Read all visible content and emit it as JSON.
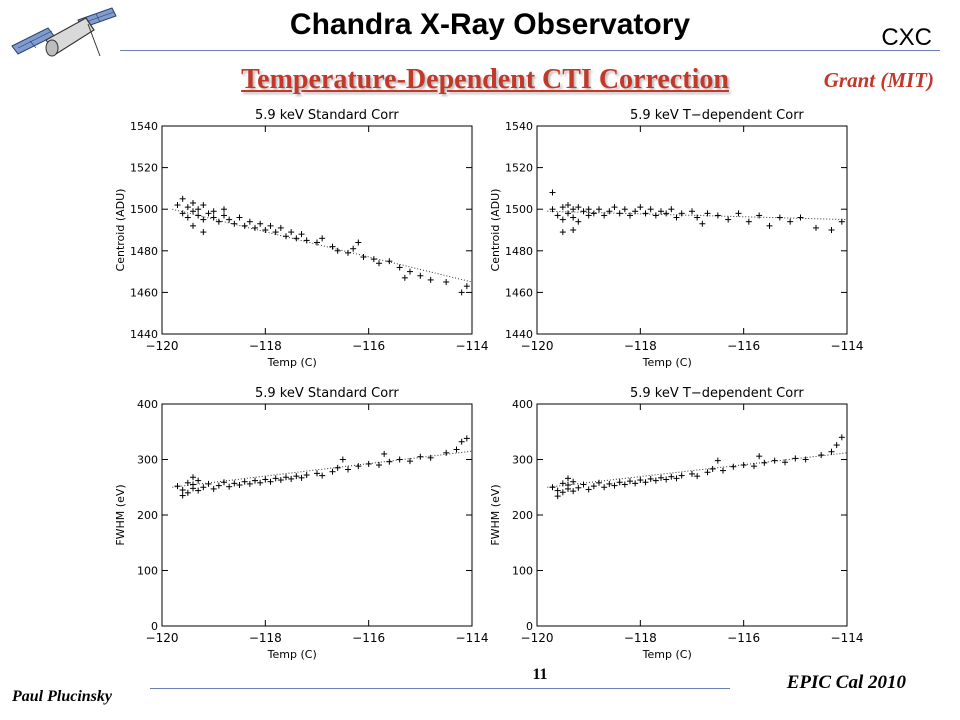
{
  "header": {
    "title": "Chandra X-Ray Observatory",
    "org": "CXC",
    "subtitle": "Temperature-Dependent CTI Correction",
    "credit": "Grant (MIT)"
  },
  "footer": {
    "author": "Paul Plucinsky",
    "page": "11",
    "event": "EPIC Cal 2010"
  },
  "chart_data": [
    {
      "type": "scatter",
      "title": "5.9 keV Standard Corr",
      "xlabel": "Temp (C)",
      "ylabel": "Centroid (ADU)",
      "xlim": [
        -120,
        -114
      ],
      "ylim": [
        1440,
        1540
      ],
      "xticks": [
        -120,
        -118,
        -116,
        -114
      ],
      "yticks": [
        1440,
        1460,
        1480,
        1500,
        1520,
        1540
      ],
      "fit": [
        [
          -119.8,
          1500
        ],
        [
          -114,
          1465
        ]
      ],
      "points": [
        [
          -119.7,
          1502
        ],
        [
          -119.6,
          1498
        ],
        [
          -119.5,
          1501
        ],
        [
          -119.5,
          1496
        ],
        [
          -119.4,
          1503
        ],
        [
          -119.4,
          1499
        ],
        [
          -119.3,
          1497
        ],
        [
          -119.3,
          1500
        ],
        [
          -119.2,
          1495
        ],
        [
          -119.2,
          1502
        ],
        [
          -119.1,
          1498
        ],
        [
          -119.0,
          1496
        ],
        [
          -119.0,
          1499
        ],
        [
          -118.9,
          1494
        ],
        [
          -118.8,
          1497
        ],
        [
          -118.7,
          1495
        ],
        [
          -118.6,
          1493
        ],
        [
          -118.5,
          1496
        ],
        [
          -118.4,
          1492
        ],
        [
          -118.3,
          1494
        ],
        [
          -118.2,
          1491
        ],
        [
          -118.1,
          1493
        ],
        [
          -118.0,
          1490
        ],
        [
          -117.9,
          1492
        ],
        [
          -117.8,
          1489
        ],
        [
          -117.7,
          1491
        ],
        [
          -117.6,
          1487
        ],
        [
          -117.5,
          1489
        ],
        [
          -117.4,
          1486
        ],
        [
          -117.3,
          1488
        ],
        [
          -117.2,
          1485
        ],
        [
          -117.0,
          1484
        ],
        [
          -116.9,
          1486
        ],
        [
          -116.7,
          1482
        ],
        [
          -116.6,
          1480
        ],
        [
          -116.4,
          1479
        ],
        [
          -116.3,
          1481
        ],
        [
          -116.1,
          1477
        ],
        [
          -115.9,
          1476
        ],
        [
          -115.8,
          1474
        ],
        [
          -115.6,
          1475
        ],
        [
          -115.4,
          1472
        ],
        [
          -115.2,
          1470
        ],
        [
          -115.0,
          1468
        ],
        [
          -114.8,
          1466
        ],
        [
          -114.5,
          1465
        ],
        [
          -114.2,
          1460
        ],
        [
          -114.1,
          1463
        ],
        [
          -119.6,
          1505
        ],
        [
          -119.4,
          1492
        ],
        [
          -119.2,
          1489
        ],
        [
          -118.8,
          1500
        ],
        [
          -116.2,
          1484
        ],
        [
          -115.3,
          1467
        ]
      ]
    },
    {
      "type": "scatter",
      "title": "5.9 keV T−dependent Corr",
      "xlabel": "Temp (C)",
      "ylabel": "Centroid (ADU)",
      "xlim": [
        -120,
        -114
      ],
      "ylim": [
        1440,
        1540
      ],
      "xticks": [
        -120,
        -118,
        -116,
        -114
      ],
      "yticks": [
        1440,
        1460,
        1480,
        1500,
        1520,
        1540
      ],
      "fit": [
        [
          -119.8,
          1499
        ],
        [
          -114,
          1495
        ]
      ],
      "points": [
        [
          -119.7,
          1500
        ],
        [
          -119.6,
          1497
        ],
        [
          -119.5,
          1501
        ],
        [
          -119.5,
          1495
        ],
        [
          -119.4,
          1502
        ],
        [
          -119.4,
          1498
        ],
        [
          -119.3,
          1496
        ],
        [
          -119.3,
          1500
        ],
        [
          -119.2,
          1494
        ],
        [
          -119.2,
          1501
        ],
        [
          -119.1,
          1499
        ],
        [
          -119.0,
          1497
        ],
        [
          -119.0,
          1500
        ],
        [
          -118.9,
          1498
        ],
        [
          -118.8,
          1500
        ],
        [
          -118.7,
          1497
        ],
        [
          -118.6,
          1499
        ],
        [
          -118.5,
          1501
        ],
        [
          -118.4,
          1498
        ],
        [
          -118.3,
          1500
        ],
        [
          -118.2,
          1497
        ],
        [
          -118.1,
          1499
        ],
        [
          -118.0,
          1501
        ],
        [
          -117.9,
          1498
        ],
        [
          -117.8,
          1500
        ],
        [
          -117.7,
          1497
        ],
        [
          -117.6,
          1499
        ],
        [
          -117.5,
          1498
        ],
        [
          -117.4,
          1500
        ],
        [
          -117.3,
          1496
        ],
        [
          -117.2,
          1498
        ],
        [
          -117.0,
          1499
        ],
        [
          -116.9,
          1496
        ],
        [
          -116.7,
          1498
        ],
        [
          -116.5,
          1497
        ],
        [
          -116.3,
          1495
        ],
        [
          -116.1,
          1498
        ],
        [
          -115.9,
          1494
        ],
        [
          -115.7,
          1497
        ],
        [
          -115.5,
          1492
        ],
        [
          -115.3,
          1496
        ],
        [
          -115.1,
          1494
        ],
        [
          -114.9,
          1496
        ],
        [
          -114.6,
          1491
        ],
        [
          -114.3,
          1490
        ],
        [
          -114.1,
          1494
        ],
        [
          -119.7,
          1508
        ],
        [
          -119.5,
          1489
        ],
        [
          -119.3,
          1490
        ],
        [
          -116.8,
          1493
        ]
      ]
    },
    {
      "type": "scatter",
      "title": "5.9 keV Standard Corr",
      "xlabel": "Temp (C)",
      "ylabel": "FWHM (eV)",
      "xlim": [
        -120,
        -114
      ],
      "ylim": [
        0,
        400
      ],
      "xticks": [
        -120,
        -118,
        -116,
        -114
      ],
      "yticks": [
        0,
        100,
        200,
        300,
        400
      ],
      "fit": [
        [
          -119.8,
          250
        ],
        [
          -114,
          315
        ]
      ],
      "points": [
        [
          -119.7,
          252
        ],
        [
          -119.6,
          245
        ],
        [
          -119.5,
          258
        ],
        [
          -119.5,
          240
        ],
        [
          -119.4,
          255
        ],
        [
          -119.4,
          248
        ],
        [
          -119.3,
          262
        ],
        [
          -119.3,
          244
        ],
        [
          -119.2,
          250
        ],
        [
          -119.1,
          256
        ],
        [
          -119.0,
          247
        ],
        [
          -118.9,
          253
        ],
        [
          -118.8,
          259
        ],
        [
          -118.7,
          251
        ],
        [
          -118.6,
          257
        ],
        [
          -118.5,
          254
        ],
        [
          -118.4,
          260
        ],
        [
          -118.3,
          256
        ],
        [
          -118.2,
          262
        ],
        [
          -118.1,
          258
        ],
        [
          -118.0,
          264
        ],
        [
          -117.9,
          260
        ],
        [
          -117.8,
          266
        ],
        [
          -117.7,
          263
        ],
        [
          -117.6,
          268
        ],
        [
          -117.5,
          265
        ],
        [
          -117.4,
          270
        ],
        [
          -117.3,
          267
        ],
        [
          -117.2,
          272
        ],
        [
          -117.0,
          275
        ],
        [
          -116.9,
          271
        ],
        [
          -116.7,
          278
        ],
        [
          -116.6,
          285
        ],
        [
          -116.4,
          282
        ],
        [
          -116.2,
          288
        ],
        [
          -116.0,
          292
        ],
        [
          -115.8,
          290
        ],
        [
          -115.6,
          296
        ],
        [
          -115.4,
          300
        ],
        [
          -115.2,
          297
        ],
        [
          -115.0,
          305
        ],
        [
          -114.8,
          303
        ],
        [
          -114.5,
          312
        ],
        [
          -114.3,
          318
        ],
        [
          -114.2,
          332
        ],
        [
          -114.1,
          338
        ],
        [
          -119.6,
          235
        ],
        [
          -119.4,
          268
        ],
        [
          -116.5,
          300
        ],
        [
          -115.7,
          310
        ]
      ]
    },
    {
      "type": "scatter",
      "title": "5.9 keV T−dependent Corr",
      "xlabel": "Temp (C)",
      "ylabel": "FWHM (eV)",
      "xlim": [
        -120,
        -114
      ],
      "ylim": [
        0,
        400
      ],
      "xticks": [
        -120,
        -118,
        -116,
        -114
      ],
      "yticks": [
        0,
        100,
        200,
        300,
        400
      ],
      "fit": [
        [
          -119.8,
          250
        ],
        [
          -114,
          312
        ]
      ],
      "points": [
        [
          -119.7,
          250
        ],
        [
          -119.6,
          244
        ],
        [
          -119.5,
          257
        ],
        [
          -119.5,
          241
        ],
        [
          -119.4,
          254
        ],
        [
          -119.4,
          247
        ],
        [
          -119.3,
          260
        ],
        [
          -119.3,
          243
        ],
        [
          -119.2,
          249
        ],
        [
          -119.1,
          255
        ],
        [
          -119.0,
          246
        ],
        [
          -118.9,
          252
        ],
        [
          -118.8,
          258
        ],
        [
          -118.7,
          250
        ],
        [
          -118.6,
          256
        ],
        [
          -118.5,
          253
        ],
        [
          -118.4,
          259
        ],
        [
          -118.3,
          255
        ],
        [
          -118.2,
          261
        ],
        [
          -118.1,
          257
        ],
        [
          -118.0,
          263
        ],
        [
          -117.9,
          259
        ],
        [
          -117.8,
          265
        ],
        [
          -117.7,
          262
        ],
        [
          -117.6,
          267
        ],
        [
          -117.5,
          264
        ],
        [
          -117.4,
          269
        ],
        [
          -117.3,
          266
        ],
        [
          -117.2,
          271
        ],
        [
          -117.0,
          274
        ],
        [
          -116.9,
          270
        ],
        [
          -116.7,
          277
        ],
        [
          -116.6,
          283
        ],
        [
          -116.4,
          280
        ],
        [
          -116.2,
          287
        ],
        [
          -116.0,
          290
        ],
        [
          -115.8,
          288
        ],
        [
          -115.6,
          294
        ],
        [
          -115.4,
          298
        ],
        [
          -115.2,
          295
        ],
        [
          -115.0,
          302
        ],
        [
          -114.8,
          300
        ],
        [
          -114.5,
          308
        ],
        [
          -114.3,
          314
        ],
        [
          -114.2,
          326
        ],
        [
          -114.1,
          340
        ],
        [
          -119.6,
          234
        ],
        [
          -119.4,
          266
        ],
        [
          -116.5,
          298
        ],
        [
          -115.7,
          306
        ]
      ]
    }
  ]
}
